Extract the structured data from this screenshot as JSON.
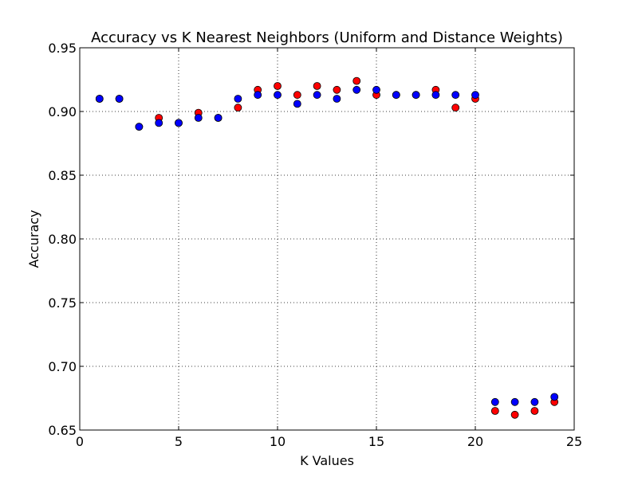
{
  "chart_data": {
    "type": "scatter",
    "title": "Accuracy vs K Nearest Neighbors (Uniform and Distance Weights)",
    "xlabel": "K Values",
    "ylabel": "Accuracy",
    "xlim": [
      0,
      25
    ],
    "ylim": [
      0.65,
      0.95
    ],
    "x_ticks": [
      0,
      5,
      10,
      15,
      20,
      25
    ],
    "y_ticks": [
      0.65,
      0.7,
      0.75,
      0.8,
      0.85,
      0.9,
      0.95
    ],
    "x_tick_labels": [
      "0",
      "5",
      "10",
      "15",
      "20",
      "25"
    ],
    "y_tick_labels": [
      "0.65",
      "0.70",
      "0.75",
      "0.80",
      "0.85",
      "0.90",
      "0.95"
    ],
    "grid": true,
    "grid_style": "dotted",
    "legend": null,
    "series": [
      {
        "color": "#ff0000",
        "points": [
          [
            1,
            0.91
          ],
          [
            2,
            0.91
          ],
          [
            3,
            0.888
          ],
          [
            4,
            0.895
          ],
          [
            5,
            0.891
          ],
          [
            6,
            0.899
          ],
          [
            7,
            0.895
          ],
          [
            8,
            0.903
          ],
          [
            9,
            0.917
          ],
          [
            10,
            0.92
          ],
          [
            11,
            0.913
          ],
          [
            12,
            0.92
          ],
          [
            13,
            0.917
          ],
          [
            14,
            0.924
          ],
          [
            15,
            0.913
          ],
          [
            16,
            0.913
          ],
          [
            17,
            0.913
          ],
          [
            18,
            0.917
          ],
          [
            19,
            0.903
          ],
          [
            20,
            0.91
          ],
          [
            21,
            0.665
          ],
          [
            22,
            0.662
          ],
          [
            23,
            0.665
          ],
          [
            24,
            0.672
          ]
        ]
      },
      {
        "color": "#0000ff",
        "points": [
          [
            1,
            0.91
          ],
          [
            2,
            0.91
          ],
          [
            3,
            0.888
          ],
          [
            4,
            0.891
          ],
          [
            5,
            0.891
          ],
          [
            6,
            0.895
          ],
          [
            7,
            0.895
          ],
          [
            8,
            0.91
          ],
          [
            9,
            0.913
          ],
          [
            10,
            0.913
          ],
          [
            11,
            0.906
          ],
          [
            12,
            0.913
          ],
          [
            13,
            0.91
          ],
          [
            14,
            0.917
          ],
          [
            15,
            0.917
          ],
          [
            16,
            0.913
          ],
          [
            17,
            0.913
          ],
          [
            18,
            0.913
          ],
          [
            19,
            0.913
          ],
          [
            20,
            0.913
          ],
          [
            21,
            0.672
          ],
          [
            22,
            0.672
          ],
          [
            23,
            0.672
          ],
          [
            24,
            0.676
          ]
        ]
      }
    ]
  }
}
